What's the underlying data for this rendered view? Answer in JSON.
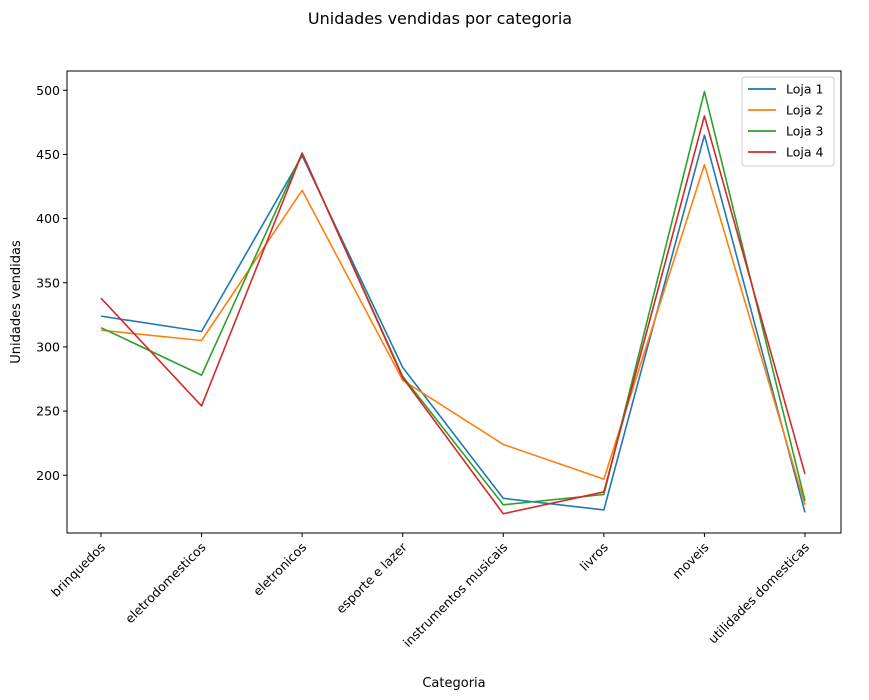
{
  "chart_data": {
    "type": "line",
    "title": "Unidades vendidas por categoria",
    "xlabel": "Categoria",
    "ylabel": "Unidades vendidas",
    "categories": [
      "brinquedos",
      "eletrodomesticos",
      "eletronicos",
      "esporte e lazer",
      "instrumentos musicais",
      "livros",
      "moveis",
      "utilidades domesticas"
    ],
    "yticks": [
      200,
      250,
      300,
      350,
      400,
      450,
      500
    ],
    "ylim": [
      155,
      515
    ],
    "grid": false,
    "legend": "top-right",
    "series": [
      {
        "name": "Loja 1",
        "color": "#1f77b4",
        "values": [
          324,
          312,
          449,
          284,
          182,
          173,
          465,
          171
        ]
      },
      {
        "name": "Loja 2",
        "color": "#ff7f0e",
        "values": [
          313,
          305,
          422,
          274,
          224,
          197,
          442,
          177
        ]
      },
      {
        "name": "Loja 3",
        "color": "#2ca02c",
        "values": [
          315,
          278,
          451,
          277,
          177,
          185,
          499,
          180
        ]
      },
      {
        "name": "Loja 4",
        "color": "#d62728",
        "values": [
          338,
          254,
          451,
          276,
          170,
          187,
          480,
          201
        ]
      }
    ]
  }
}
